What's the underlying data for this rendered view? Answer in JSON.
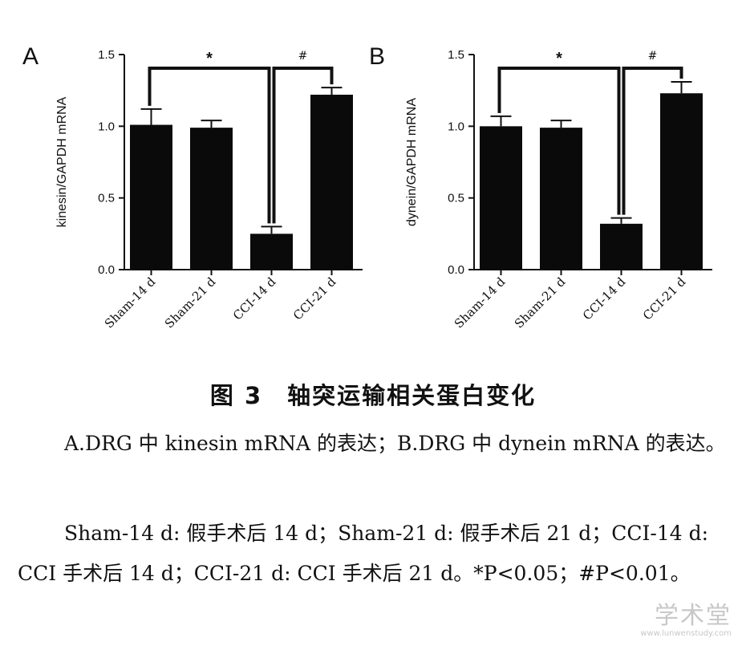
{
  "chart_data": [
    {
      "panel": "A",
      "type": "bar",
      "categories": [
        "Sham-14 d",
        "Sham-21 d",
        "CCI-14 d",
        "CCI-21 d"
      ],
      "values": [
        1.01,
        0.99,
        0.25,
        1.22
      ],
      "errors": [
        0.11,
        0.05,
        0.05,
        0.05
      ],
      "ylabel": "kinesin/GAPDH mRNA",
      "ylim": [
        0,
        1.5
      ],
      "yticks": [
        "0.0",
        "0.5",
        "1.0",
        "1.5"
      ],
      "significance": [
        {
          "from": 0,
          "to": 2,
          "symbol": "*"
        },
        {
          "from": 2,
          "to": 3,
          "symbol": "#"
        }
      ]
    },
    {
      "panel": "B",
      "type": "bar",
      "categories": [
        "Sham-14 d",
        "Sham-21 d",
        "CCI-14 d",
        "CCI-21 d"
      ],
      "values": [
        1.0,
        0.99,
        0.32,
        1.23
      ],
      "errors": [
        0.07,
        0.05,
        0.04,
        0.08
      ],
      "ylabel": "dynein/GAPDH mRNA",
      "ylim": [
        0,
        1.5
      ],
      "yticks": [
        "0.0",
        "0.5",
        "1.0",
        "1.5"
      ],
      "significance": [
        {
          "from": 0,
          "to": 2,
          "symbol": "*"
        },
        {
          "from": 2,
          "to": 3,
          "symbol": "#"
        }
      ]
    }
  ],
  "figure_title": "图 3　轴突运输相关蛋白变化",
  "caption_line1": "A.DRG 中 kinesin mRNA 的表达；B.DRG 中 dynein mRNA 的表达。",
  "caption_line2": "Sham-14 d: 假手术后 14 d；Sham-21 d: 假手术后 21 d；CCI-14 d: CCI 手术后 14 d；CCI-21 d: CCI 手术后 21 d。*P<0.05；#P<0.01。",
  "watermark": "学术堂",
  "watermark_url": "www.lunwenstudy.com",
  "colors": {
    "bar": "#0a0a0a",
    "text": "#111111",
    "watermark": "#c8c8c8"
  }
}
